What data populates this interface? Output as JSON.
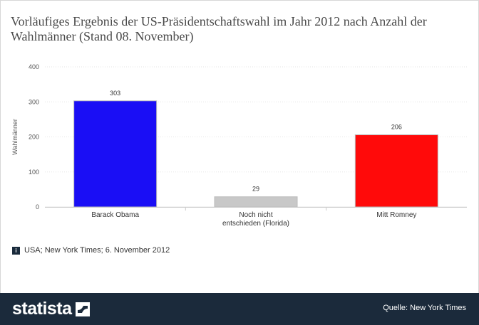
{
  "title": "Vorläufiges Ergebnis der US-Präsidentschaftswahl im Jahr 2012 nach Anzahl der Wahlmänner (Stand 08. November)",
  "footnote": {
    "badge": "i",
    "text": "USA; New York Times; 6. November 2012"
  },
  "footer": {
    "brand": "statista",
    "source": "Quelle: New York Times"
  },
  "colors": {
    "footer_bg": "#1b2a3b",
    "obama": "#1a0ef5",
    "undecided": "#c8c8c8",
    "romney": "#ff0a0a"
  },
  "chart_data": {
    "type": "bar",
    "title": "",
    "ylabel": "Wahlmänner",
    "xlabel": "",
    "ylim": [
      0,
      400
    ],
    "yticks": [
      "0",
      "100",
      "200",
      "300",
      "400"
    ],
    "categories": [
      [
        "Barack Obama"
      ],
      [
        "Noch nicht",
        "entschieden (Florida)"
      ],
      [
        "Mitt Romney"
      ]
    ],
    "values": [
      303,
      29,
      206
    ],
    "value_labels": [
      "303",
      "29",
      "206"
    ],
    "bar_colors": [
      "#1a0ef5",
      "#c8c8c8",
      "#ff0a0a"
    ],
    "grid": true
  }
}
